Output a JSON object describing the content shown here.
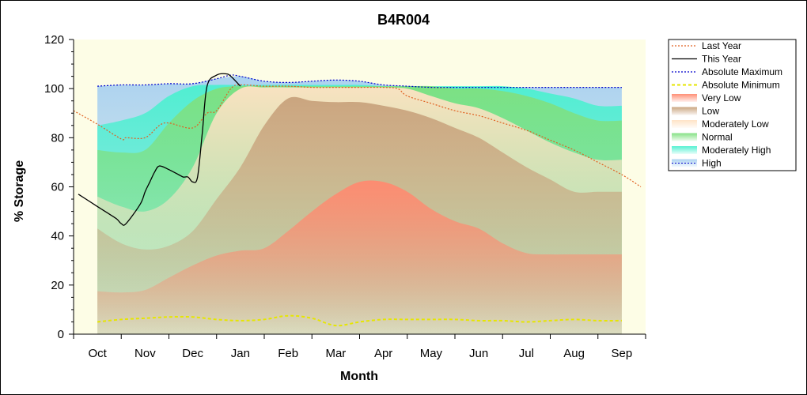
{
  "chart_data": {
    "type": "area",
    "title": "B4R004",
    "xlabel": "Month",
    "ylabel": "% Storage",
    "ylim": [
      0,
      120
    ],
    "yticks": [
      0,
      20,
      40,
      60,
      80,
      100,
      120
    ],
    "xlim": [
      -0.5,
      11.5
    ],
    "month_labels": [
      "Oct",
      "Nov",
      "Dec",
      "Jan",
      "Feb",
      "Mar",
      "Apr",
      "May",
      "Jun",
      "Jul",
      "Aug",
      "Sep"
    ],
    "grid": false,
    "legend_position": "right",
    "bands": [
      {
        "name": "Very Low",
        "color": "#ff8a70",
        "x": [
          0,
          0.5,
          1,
          1.5,
          2,
          2.5,
          3,
          3.5,
          4,
          4.5,
          5,
          5.5,
          6,
          6.5,
          7,
          7.5,
          8,
          8.5,
          9,
          9.5,
          10,
          10.5,
          11
        ],
        "lower": [
          0,
          0,
          0,
          0,
          0,
          0,
          0,
          0,
          0,
          0,
          0,
          0,
          0,
          0,
          0,
          0,
          0,
          0,
          0,
          0,
          0,
          0,
          0
        ],
        "upper": [
          17.5,
          17,
          18,
          23,
          28,
          32,
          34,
          35,
          42,
          50,
          57,
          62,
          62,
          58,
          51,
          46,
          43,
          37,
          33,
          32.5,
          32.5,
          32.5,
          32.5
        ]
      },
      {
        "name": "Low",
        "color": "#c8a27c",
        "x": [
          0,
          0.5,
          1,
          1.5,
          2,
          2.5,
          3,
          3.5,
          4,
          4.5,
          5,
          5.5,
          6,
          6.5,
          7,
          7.5,
          8,
          8.5,
          9,
          9.5,
          10,
          10.5,
          11
        ],
        "upper": [
          43,
          37,
          34.5,
          36,
          42,
          55,
          68,
          85,
          96,
          95,
          94.5,
          94.5,
          93,
          91,
          88,
          84,
          80,
          74,
          68,
          63,
          58,
          58,
          58
        ]
      },
      {
        "name": "Moderately Low",
        "color": "#ffe2c4",
        "x": [
          0,
          0.5,
          1,
          1.5,
          2,
          2.5,
          3,
          3.5,
          4,
          4.5,
          5,
          5.5,
          6,
          6.5,
          7,
          7.5,
          8,
          8.5,
          9,
          9.5,
          10,
          10.5,
          11
        ],
        "upper": [
          56,
          52,
          50,
          55,
          68,
          90,
          100,
          100.5,
          100.5,
          100.5,
          100.5,
          100.5,
          100.5,
          100,
          97,
          94,
          92,
          88,
          83,
          78,
          74,
          71,
          71
        ]
      },
      {
        "name": "Normal",
        "color": "#7fe07f",
        "x": [
          0,
          0.5,
          1,
          1.5,
          2,
          2.5,
          3,
          3.5,
          4,
          4.5,
          5,
          5.5,
          6,
          6.5,
          7,
          7.5,
          8,
          8.5,
          9,
          9.5,
          10,
          10.5,
          11
        ],
        "upper": [
          75,
          74,
          75,
          86,
          95,
          100,
          101,
          101,
          101,
          101,
          101,
          101,
          101,
          101,
          101,
          100,
          100,
          99,
          97,
          94,
          90,
          87,
          87
        ]
      },
      {
        "name": "Moderately High",
        "color": "#4cf0d0",
        "x": [
          0,
          0.5,
          1,
          1.5,
          2,
          2.5,
          3,
          3.5,
          4,
          4.5,
          5,
          5.5,
          6,
          6.5,
          7,
          7.5,
          8,
          8.5,
          9,
          9.5,
          10,
          10.5,
          11
        ],
        "upper": [
          85,
          87,
          90,
          97,
          101,
          101.5,
          101.5,
          101.5,
          101.5,
          101.5,
          101.5,
          101.5,
          101,
          101,
          101,
          101,
          101,
          101,
          100,
          98,
          96,
          93,
          93
        ]
      },
      {
        "name": "High",
        "color": "#a8d0f0",
        "x": [
          0,
          0.5,
          1,
          1.5,
          2,
          2.5,
          3,
          3.5,
          4,
          4.5,
          5,
          5.5,
          6,
          6.5,
          7,
          7.5,
          8,
          8.5,
          9,
          9.5,
          10,
          10.5,
          11
        ],
        "upper": [
          101,
          101.5,
          101.5,
          102,
          102,
          104,
          105,
          103,
          102.5,
          103,
          103.5,
          103,
          101.5,
          101,
          100.5,
          100.5,
          100.5,
          100.5,
          100.5,
          100.5,
          100.5,
          100.5,
          100.5
        ]
      }
    ],
    "series": [
      {
        "name": "Absolute Maximum",
        "color": "#0000cc",
        "style": "dotted",
        "x": [
          0,
          0.5,
          1,
          1.5,
          2,
          2.5,
          2.8,
          3,
          3.5,
          4,
          4.5,
          5,
          5.5,
          6,
          6.5,
          7,
          7.5,
          8,
          8.5,
          9,
          9.5,
          10,
          10.5,
          11
        ],
        "y": [
          101,
          101.5,
          101.5,
          102,
          102,
          104,
          105.5,
          105,
          103,
          102.5,
          103,
          103.5,
          103,
          101.5,
          101,
          100.5,
          100.5,
          100.5,
          100.5,
          100.5,
          100.5,
          100.5,
          100.5,
          100.5
        ]
      },
      {
        "name": "Absolute Minimum",
        "color": "#e6e600",
        "style": "dashed",
        "x": [
          0,
          0.5,
          1,
          1.5,
          2,
          2.5,
          3,
          3.5,
          4,
          4.5,
          5,
          5.5,
          6,
          6.5,
          7,
          7.5,
          8,
          8.5,
          9,
          9.5,
          10,
          10.5,
          11
        ],
        "y": [
          5,
          6,
          6.5,
          7,
          7,
          6,
          5.5,
          6,
          7.5,
          6.5,
          3.5,
          5,
          6,
          6,
          6,
          6,
          5.5,
          5.5,
          5,
          5.5,
          6,
          5.5,
          5.5
        ]
      },
      {
        "name": "Last Year",
        "color": "#e06020",
        "style": "dotted",
        "x": [
          -0.5,
          0,
          0.5,
          0.6,
          1,
          1.3,
          1.5,
          2,
          2.3,
          2.5,
          2.8,
          3,
          3.5,
          4,
          4.5,
          5,
          5.5,
          6,
          6.3,
          6.5,
          7,
          7.5,
          8,
          8.5,
          9,
          9.5,
          10,
          10.5,
          11,
          11.4
        ],
        "y": [
          91,
          85.5,
          79.5,
          80,
          80,
          85,
          86,
          84,
          90,
          91,
          100,
          101.5,
          101,
          101,
          100.5,
          100.5,
          100.5,
          100.5,
          100,
          97,
          94,
          91,
          89,
          86,
          83,
          79,
          75,
          70,
          65,
          60
        ]
      },
      {
        "name": "This Year",
        "color": "#000000",
        "style": "solid",
        "x": [
          -0.4,
          0,
          0.2,
          0.4,
          0.5,
          0.6,
          0.9,
          1,
          1.1,
          1.2,
          1.3,
          1.5,
          1.7,
          1.8,
          1.9,
          2.0,
          2.1,
          2.2,
          2.3,
          2.5,
          2.7,
          2.8,
          3.0
        ],
        "y": [
          57,
          52,
          49.5,
          47,
          45,
          45,
          53,
          58,
          62,
          66,
          68.5,
          67,
          65,
          64,
          64,
          62,
          64,
          82,
          101,
          105.5,
          106,
          105,
          101
        ]
      }
    ]
  }
}
